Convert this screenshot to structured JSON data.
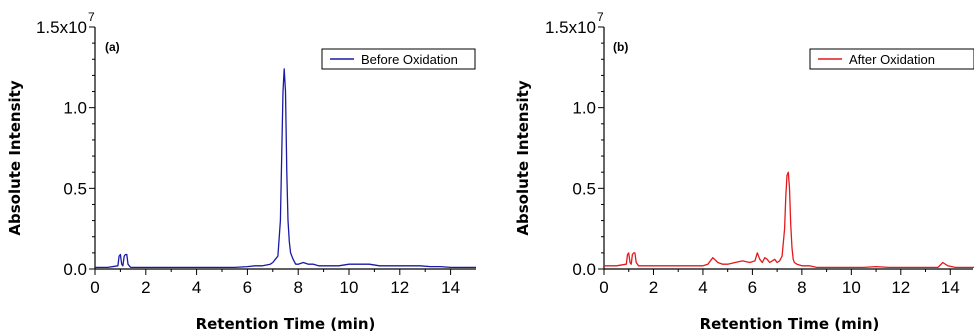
{
  "chart_data": [
    {
      "type": "line",
      "panel_label": "(a)",
      "xlabel": "Retention Time (min)",
      "ylabel": "Absolute Intensity",
      "xlim": [
        0,
        15
      ],
      "ylim": [
        0,
        1.5
      ],
      "y_scale_label": "1.5x10",
      "y_scale_exponent": "7",
      "xticks": [
        "0",
        "2",
        "4",
        "6",
        "8",
        "10",
        "12",
        "14"
      ],
      "yticks": [
        "0.0",
        "0.5",
        "1.0"
      ],
      "legend": "top-right",
      "grid": false,
      "series": [
        {
          "name": "Before Oxidation",
          "color": "#1a1aa6",
          "x": [
            0,
            0.5,
            0.9,
            0.95,
            1.0,
            1.05,
            1.1,
            1.15,
            1.2,
            1.25,
            1.3,
            1.35,
            1.4,
            1.5,
            2.0,
            2.5,
            3.0,
            3.5,
            4.0,
            4.5,
            5.0,
            5.5,
            6.0,
            6.3,
            6.6,
            6.9,
            7.0,
            7.1,
            7.2,
            7.3,
            7.35,
            7.4,
            7.45,
            7.5,
            7.55,
            7.6,
            7.65,
            7.7,
            7.8,
            7.9,
            8.0,
            8.2,
            8.4,
            8.6,
            8.8,
            9.0,
            9.3,
            9.6,
            10.0,
            10.4,
            10.8,
            11.2,
            11.6,
            12.0,
            12.4,
            12.8,
            13.2,
            13.6,
            14.0,
            14.5,
            15.0
          ],
          "y": [
            0.01,
            0.01,
            0.02,
            0.08,
            0.09,
            0.03,
            0.02,
            0.08,
            0.09,
            0.09,
            0.03,
            0.02,
            0.01,
            0.01,
            0.01,
            0.01,
            0.01,
            0.01,
            0.01,
            0.01,
            0.01,
            0.01,
            0.015,
            0.02,
            0.02,
            0.03,
            0.04,
            0.06,
            0.08,
            0.3,
            0.7,
            1.1,
            1.24,
            1.1,
            0.6,
            0.3,
            0.17,
            0.1,
            0.06,
            0.03,
            0.03,
            0.04,
            0.03,
            0.03,
            0.02,
            0.02,
            0.02,
            0.02,
            0.03,
            0.03,
            0.03,
            0.02,
            0.02,
            0.02,
            0.02,
            0.02,
            0.015,
            0.015,
            0.01,
            0.01,
            0.01
          ]
        }
      ]
    },
    {
      "type": "line",
      "panel_label": "(b)",
      "xlabel": "Retention Time (min)",
      "ylabel": "Absolute Intensity",
      "xlim": [
        0,
        15
      ],
      "ylim": [
        0,
        1.5
      ],
      "y_scale_label": "1.5x10",
      "y_scale_exponent": "7",
      "xticks": [
        "0",
        "2",
        "4",
        "6",
        "8",
        "10",
        "12",
        "14"
      ],
      "yticks": [
        "0.0",
        "0.5",
        "1.0"
      ],
      "legend": "top-right",
      "grid": false,
      "series": [
        {
          "name": "After Oxidation",
          "color": "#e31a1c",
          "x": [
            0,
            0.5,
            0.9,
            0.95,
            1.0,
            1.05,
            1.1,
            1.15,
            1.2,
            1.25,
            1.3,
            1.35,
            1.4,
            1.6,
            2.0,
            2.5,
            3.0,
            3.5,
            4.0,
            4.2,
            4.4,
            4.6,
            4.8,
            5.0,
            5.3,
            5.6,
            5.9,
            6.1,
            6.2,
            6.3,
            6.4,
            6.5,
            6.6,
            6.7,
            6.8,
            6.9,
            7.0,
            7.1,
            7.2,
            7.3,
            7.35,
            7.4,
            7.45,
            7.5,
            7.55,
            7.6,
            7.65,
            7.7,
            7.8,
            8.0,
            8.3,
            8.6,
            9.0,
            9.5,
            10.0,
            10.5,
            11.0,
            11.5,
            12.0,
            12.5,
            13.0,
            13.5,
            13.7,
            13.9,
            14.2,
            14.6,
            15.0
          ],
          "y": [
            0.02,
            0.02,
            0.03,
            0.09,
            0.1,
            0.04,
            0.03,
            0.09,
            0.1,
            0.1,
            0.04,
            0.03,
            0.02,
            0.02,
            0.02,
            0.02,
            0.02,
            0.02,
            0.02,
            0.03,
            0.07,
            0.04,
            0.03,
            0.03,
            0.04,
            0.05,
            0.04,
            0.05,
            0.1,
            0.06,
            0.04,
            0.07,
            0.06,
            0.04,
            0.05,
            0.06,
            0.04,
            0.05,
            0.08,
            0.25,
            0.45,
            0.58,
            0.6,
            0.5,
            0.28,
            0.13,
            0.06,
            0.04,
            0.03,
            0.02,
            0.02,
            0.01,
            0.01,
            0.01,
            0.01,
            0.01,
            0.015,
            0.01,
            0.01,
            0.01,
            0.01,
            0.01,
            0.04,
            0.02,
            0.01,
            0.01,
            0.01
          ]
        }
      ]
    }
  ]
}
